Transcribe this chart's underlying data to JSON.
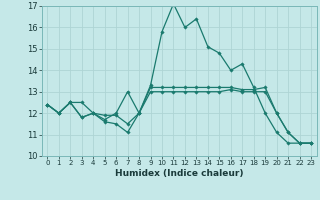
{
  "xlabel": "Humidex (Indice chaleur)",
  "bg_color": "#c5e8e8",
  "grid_color": "#aed4d4",
  "line_color": "#1a7a6e",
  "xlim": [
    -0.5,
    23.5
  ],
  "ylim": [
    10,
    17
  ],
  "yticks": [
    10,
    11,
    12,
    13,
    14,
    15,
    16,
    17
  ],
  "xticks": [
    0,
    1,
    2,
    3,
    4,
    5,
    6,
    7,
    8,
    9,
    10,
    11,
    12,
    13,
    14,
    15,
    16,
    17,
    18,
    19,
    20,
    21,
    22,
    23
  ],
  "series": [
    [
      12.4,
      12.0,
      12.5,
      11.8,
      12.0,
      11.6,
      11.5,
      11.1,
      12.0,
      13.0,
      13.0,
      13.0,
      13.0,
      13.0,
      13.0,
      13.0,
      13.1,
      13.0,
      13.0,
      13.0,
      12.0,
      11.1,
      10.6,
      10.6
    ],
    [
      12.4,
      12.0,
      12.5,
      11.8,
      12.0,
      11.9,
      11.9,
      11.5,
      12.0,
      13.2,
      13.2,
      13.2,
      13.2,
      13.2,
      13.2,
      13.2,
      13.2,
      13.1,
      13.1,
      13.2,
      12.0,
      11.1,
      10.6,
      10.6
    ],
    [
      12.4,
      12.0,
      12.5,
      12.5,
      12.0,
      11.7,
      12.0,
      13.0,
      12.0,
      13.3,
      15.8,
      17.1,
      16.0,
      16.4,
      15.1,
      14.8,
      14.0,
      14.3,
      13.2,
      12.0,
      11.1,
      10.6,
      10.6,
      10.6
    ]
  ]
}
